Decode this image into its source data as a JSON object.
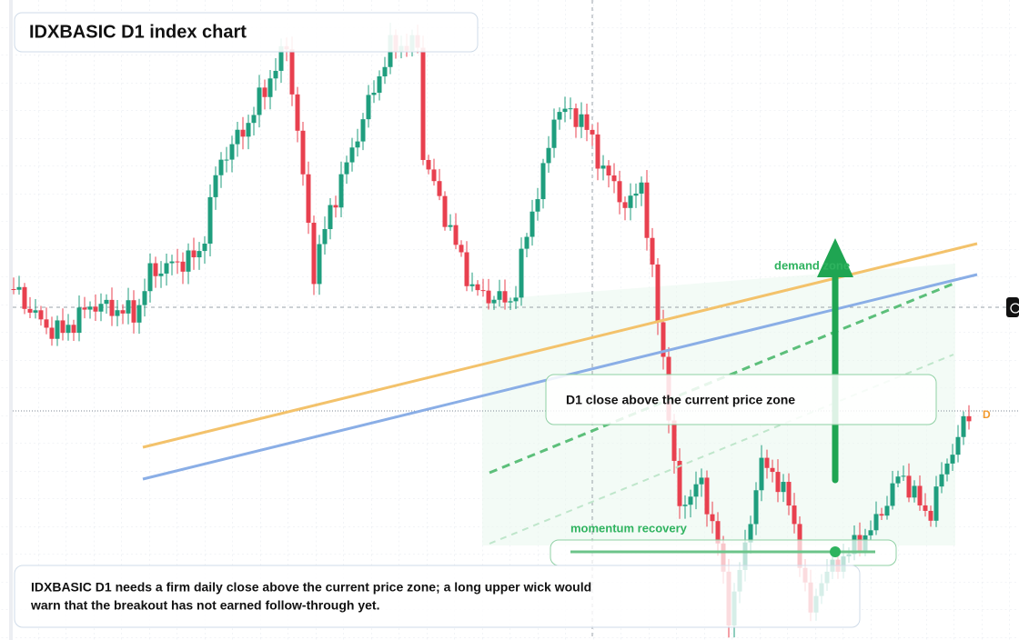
{
  "header": {
    "title": "IDXBASIC D1 index chart"
  },
  "annotations": {
    "zone_label": "demand zone",
    "target_card": "D1 close above the current price zone",
    "momentum_label": "momentum recovery",
    "marker": "D"
  },
  "note": {
    "line1": "IDXBASIC D1 needs a firm daily close above the current price zone; a long upper wick would",
    "line2": "warn that the breakout has not earned follow-through yet."
  }
}
